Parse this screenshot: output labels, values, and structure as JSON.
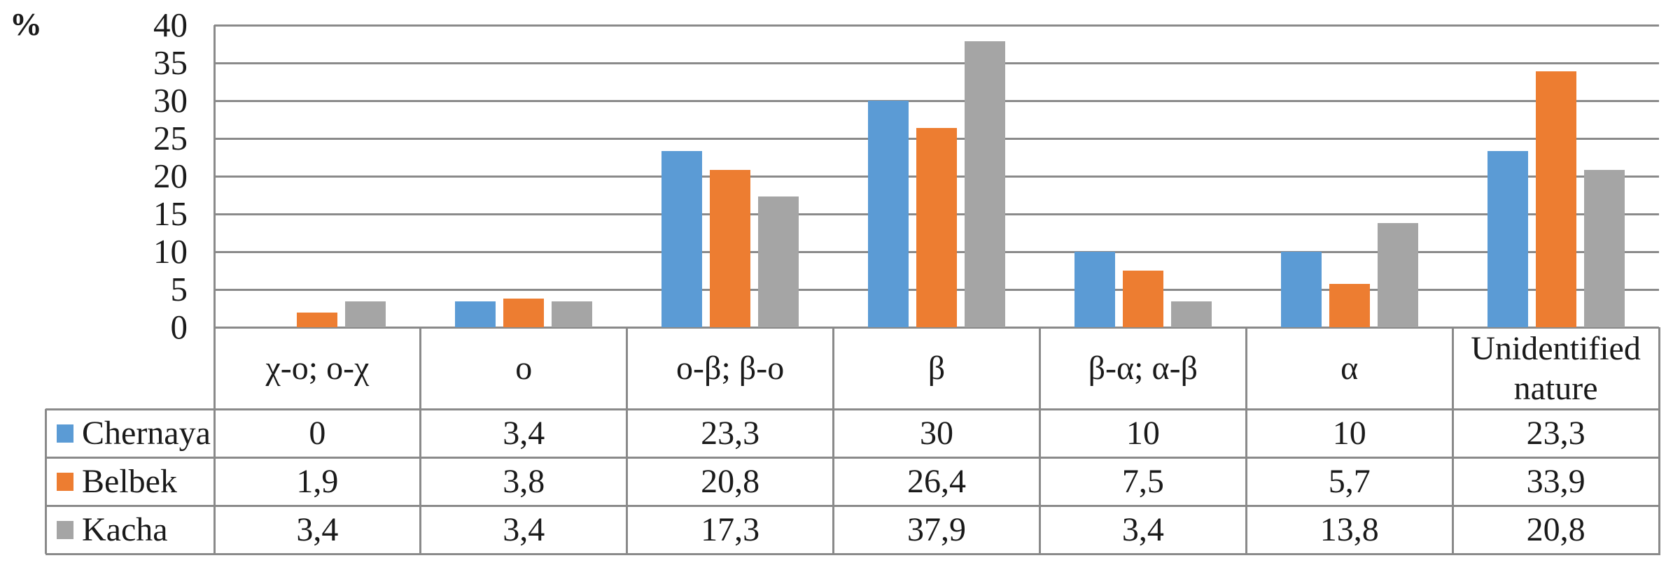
{
  "figure": {
    "background": "#ffffff",
    "text_color": "#1a1a1a",
    "grid_color": "#8a8a8a"
  },
  "chart_data": {
    "type": "bar",
    "title": "",
    "xlabel": "",
    "ylabel": "%",
    "ylim": [
      0,
      40
    ],
    "ytick_step": 5,
    "ytick_labels": [
      "40",
      "35",
      "30",
      "25",
      "20",
      "15",
      "10",
      "5",
      "0"
    ],
    "grid": true,
    "legend_position": "table-left",
    "categories": [
      "χ-o; o-χ",
      "o",
      "o-β; β-o",
      "β",
      "β-α; α-β",
      "α",
      "Unidentified nature"
    ],
    "series": [
      {
        "name": "Chernaya",
        "color": "#5B9BD5",
        "values": [
          0,
          3.4,
          23.3,
          30,
          10,
          10,
          23.3
        ],
        "labels": [
          "0",
          "3,4",
          "23,3",
          "30",
          "10",
          "10",
          "23,3"
        ]
      },
      {
        "name": "Belbek",
        "color": "#ED7D31",
        "values": [
          1.9,
          3.8,
          20.8,
          26.4,
          7.5,
          5.7,
          33.9
        ],
        "labels": [
          "1,9",
          "3,8",
          "20,8",
          "26,4",
          "7,5",
          "5,7",
          "33,9"
        ]
      },
      {
        "name": "Kacha",
        "color": "#A5A5A5",
        "values": [
          3.4,
          3.4,
          17.3,
          37.9,
          3.4,
          13.8,
          20.8
        ],
        "labels": [
          "3,4",
          "3,4",
          "17,3",
          "37,9",
          "3,4",
          "13,8",
          "20,8"
        ]
      }
    ]
  }
}
